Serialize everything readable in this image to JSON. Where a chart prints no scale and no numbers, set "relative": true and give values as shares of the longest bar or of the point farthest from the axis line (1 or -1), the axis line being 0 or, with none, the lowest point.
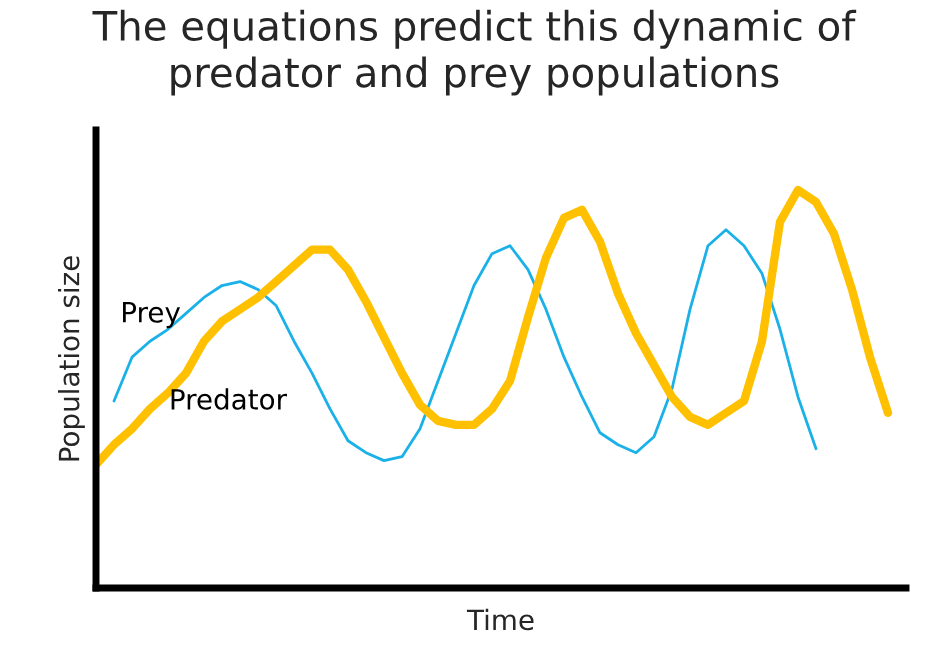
{
  "chart_data": {
    "type": "line",
    "title": "The equations predict this dynamic of\npredator and prey populations",
    "xlabel": "Time",
    "ylabel": "Population size",
    "relative": true,
    "marker": "none",
    "line_style": "solid",
    "categories": [
      null,
      null,
      null,
      null,
      null,
      null,
      null,
      null,
      null,
      null,
      null,
      null,
      null,
      null,
      null,
      null,
      null,
      null,
      null,
      null,
      null,
      null,
      null,
      null,
      null,
      null,
      null,
      null,
      null,
      null,
      null,
      null,
      null,
      null,
      null,
      null,
      null,
      null,
      null,
      null,
      null,
      null,
      null,
      null,
      null
    ],
    "series": [
      {
        "name": "Prey",
        "color": "#1ab0e8",
        "values": [
          null,
          0.47,
          0.58,
          0.62,
          0.65,
          0.69,
          0.73,
          0.76,
          0.77,
          0.75,
          0.71,
          0.62,
          0.54,
          0.45,
          0.37,
          0.34,
          0.32,
          0.33,
          0.4,
          0.52,
          0.64,
          0.76,
          0.84,
          0.86,
          0.8,
          0.7,
          0.58,
          0.48,
          0.39,
          0.36,
          0.34,
          0.38,
          0.5,
          0.7,
          0.86,
          0.9,
          0.86,
          0.79,
          0.65,
          0.48,
          0.35,
          null,
          null,
          null,
          null
        ]
      },
      {
        "name": "Predator",
        "color": "#ffc000",
        "values": [
          0.31,
          0.36,
          0.4,
          0.45,
          0.49,
          0.54,
          0.62,
          0.67,
          0.7,
          0.73,
          0.77,
          0.81,
          0.85,
          0.85,
          0.8,
          0.72,
          0.63,
          0.54,
          0.46,
          0.42,
          0.41,
          0.41,
          0.45,
          0.52,
          0.68,
          0.83,
          0.93,
          0.95,
          0.87,
          0.74,
          0.64,
          0.56,
          0.48,
          0.43,
          0.41,
          0.44,
          0.47,
          0.62,
          0.92,
          1.0,
          0.97,
          0.89,
          0.75,
          0.58,
          0.44
        ]
      }
    ]
  }
}
